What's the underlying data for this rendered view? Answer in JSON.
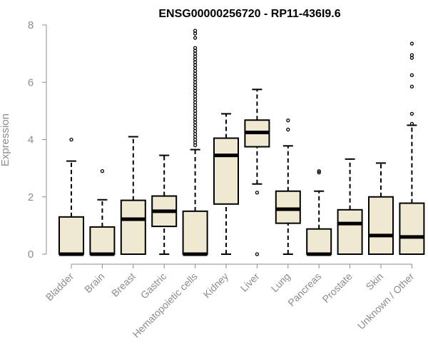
{
  "chart_data": {
    "type": "box",
    "title": "ENSG00000256720 - RP11-436I9.6",
    "ylabel": "Expression",
    "xlabel": "",
    "ylim": [
      0,
      8
    ],
    "yticks": [
      0,
      2,
      4,
      6,
      8
    ],
    "categories": [
      "Bladder",
      "Brain",
      "Breast",
      "Gastric",
      "Hematopoietic cells",
      "Kidney",
      "Liver",
      "Lung",
      "Pancreas",
      "Prostate",
      "Skin",
      "Unknown / Other"
    ],
    "box_fill": "#efe9d1",
    "boxes": [
      {
        "name": "Bladder",
        "q1": 0,
        "median": 0,
        "q3": 1.3,
        "whisker_low": 0,
        "whisker_high": 3.25,
        "outliers": [
          4.0
        ]
      },
      {
        "name": "Brain",
        "q1": 0,
        "median": 0,
        "q3": 0.95,
        "whisker_low": 0,
        "whisker_high": 1.9,
        "outliers": [
          2.9
        ]
      },
      {
        "name": "Breast",
        "q1": 0,
        "median": 1.22,
        "q3": 1.88,
        "whisker_low": 0,
        "whisker_high": 4.1,
        "outliers": []
      },
      {
        "name": "Gastric",
        "q1": 0.97,
        "median": 1.5,
        "q3": 2.03,
        "whisker_low": 0,
        "whisker_high": 3.45,
        "outliers": []
      },
      {
        "name": "Hematopoietic cells",
        "q1": 0,
        "median": 0,
        "q3": 1.5,
        "whisker_low": 0,
        "whisker_high": 3.65,
        "outliers": [
          3.8,
          3.9,
          4.0,
          4.1,
          4.2,
          4.3,
          4.4,
          4.5,
          4.6,
          4.7,
          4.8,
          4.9,
          5.0,
          5.1,
          5.2,
          5.3,
          5.4,
          5.5,
          5.6,
          5.7,
          5.8,
          5.9,
          6.0,
          6.1,
          6.2,
          6.3,
          6.4,
          6.5,
          6.6,
          6.7,
          6.8,
          6.9,
          7.0,
          7.1,
          7.2,
          7.55,
          7.7,
          7.8
        ]
      },
      {
        "name": "Kidney",
        "q1": 1.75,
        "median": 3.45,
        "q3": 4.05,
        "whisker_low": 0,
        "whisker_high": 4.9,
        "outliers": []
      },
      {
        "name": "Liver",
        "q1": 3.75,
        "median": 4.25,
        "q3": 4.68,
        "whisker_low": 2.45,
        "whisker_high": 5.75,
        "outliers": [
          2.15,
          0
        ]
      },
      {
        "name": "Lung",
        "q1": 1.08,
        "median": 1.57,
        "q3": 2.2,
        "whisker_low": 0,
        "whisker_high": 3.78,
        "outliers": [
          4.35,
          4.67
        ]
      },
      {
        "name": "Pancreas",
        "q1": 0,
        "median": 0,
        "q3": 0.88,
        "whisker_low": 0,
        "whisker_high": 2.2,
        "outliers": [
          2.85,
          2.9
        ]
      },
      {
        "name": "Prostate",
        "q1": 0,
        "median": 1.07,
        "q3": 1.55,
        "whisker_low": 0,
        "whisker_high": 3.32,
        "outliers": []
      },
      {
        "name": "Skin",
        "q1": 0,
        "median": 0.65,
        "q3": 2.0,
        "whisker_low": 0,
        "whisker_high": 3.18,
        "outliers": []
      },
      {
        "name": "Unknown / Other",
        "q1": 0,
        "median": 0.6,
        "q3": 1.78,
        "whisker_low": 0,
        "whisker_high": 4.5,
        "outliers": [
          4.55,
          4.9,
          5.85,
          6.25,
          6.85,
          6.95,
          7.35
        ]
      }
    ]
  }
}
